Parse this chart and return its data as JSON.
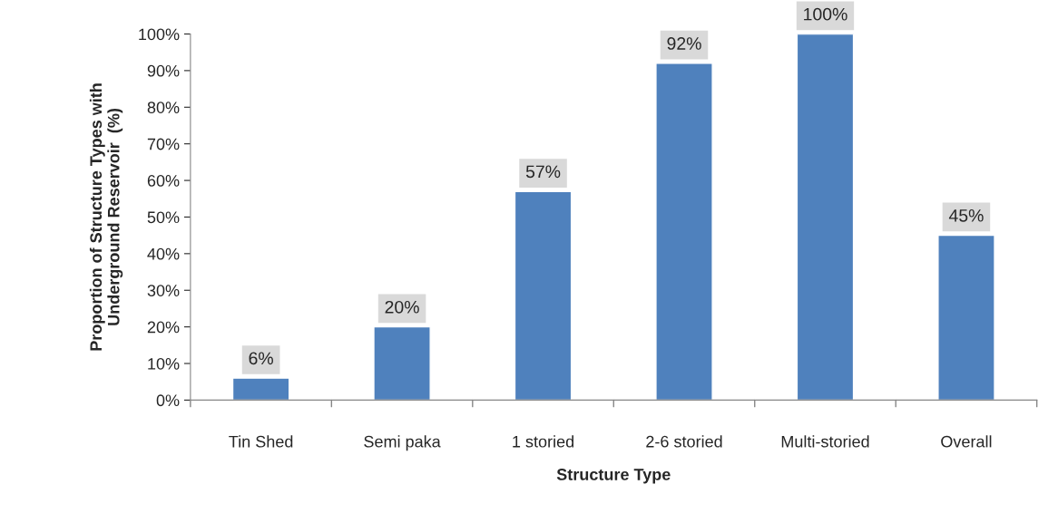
{
  "chart_data": {
    "type": "bar",
    "xlabel": "Structure Type",
    "ylabel": "Proportion of Structure Types with\nUnderground Reservoir  (%)",
    "categories": [
      "Tin Shed",
      "Semi paka",
      "1 storied",
      "2-6 storied",
      "Multi-storied",
      "Overall"
    ],
    "values": [
      6,
      20,
      57,
      92,
      100,
      45
    ],
    "value_labels": [
      "6%",
      "20%",
      "57%",
      "92%",
      "100%",
      "45%"
    ],
    "color": "#4f81bd",
    "ylim": [
      0,
      100
    ],
    "yticks": [
      {
        "value": 0,
        "label": "0%"
      },
      {
        "value": 10,
        "label": "10%"
      },
      {
        "value": 20,
        "label": "20%"
      },
      {
        "value": 30,
        "label": "30%"
      },
      {
        "value": 40,
        "label": "40%"
      },
      {
        "value": 50,
        "label": "50%"
      },
      {
        "value": 60,
        "label": "60%"
      },
      {
        "value": 70,
        "label": "70%"
      },
      {
        "value": 80,
        "label": "80%"
      },
      {
        "value": 90,
        "label": "90%"
      },
      {
        "value": 100,
        "label": "100%"
      }
    ],
    "grid": false,
    "legend": false
  }
}
